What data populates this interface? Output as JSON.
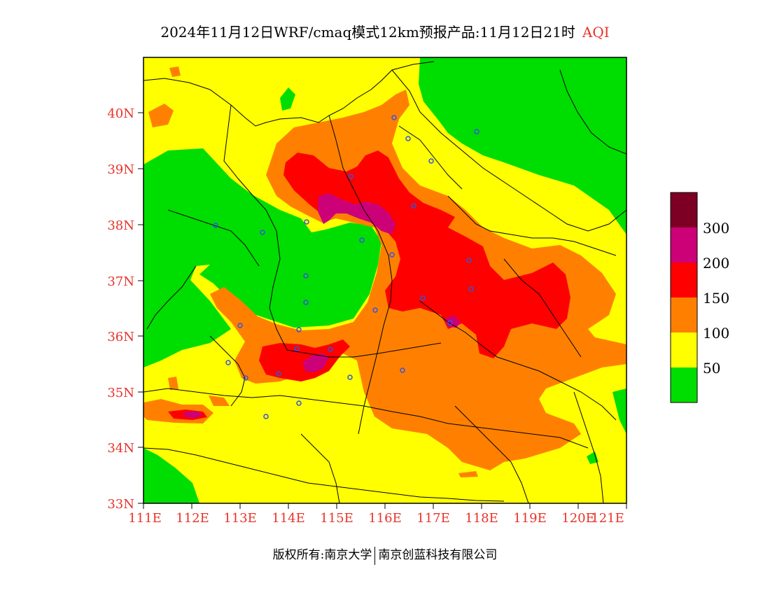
{
  "title": {
    "main": "2024年11月12日WRF/cmaq模式12km预报产品:11月12日21时",
    "tag": "AQI"
  },
  "axes": {
    "lat_ticks": [
      "40N",
      "39N",
      "38N",
      "37N",
      "36N",
      "35N",
      "34N",
      "33N"
    ],
    "lon_ticks": [
      "111E",
      "112E",
      "113E",
      "114E",
      "115E",
      "116E",
      "117E",
      "118E",
      "119E",
      "120E",
      "121E"
    ]
  },
  "legend": {
    "labels": [
      "300",
      "200",
      "150",
      "100",
      "50"
    ],
    "colors": [
      "#7d0024",
      "#cc0077",
      "#ff0000",
      "#ff8000",
      "#ffff00",
      "#00dd00"
    ]
  },
  "footer": {
    "left": "版权所有:南京大学",
    "right": "南京创蓝科技有限公司"
  }
}
